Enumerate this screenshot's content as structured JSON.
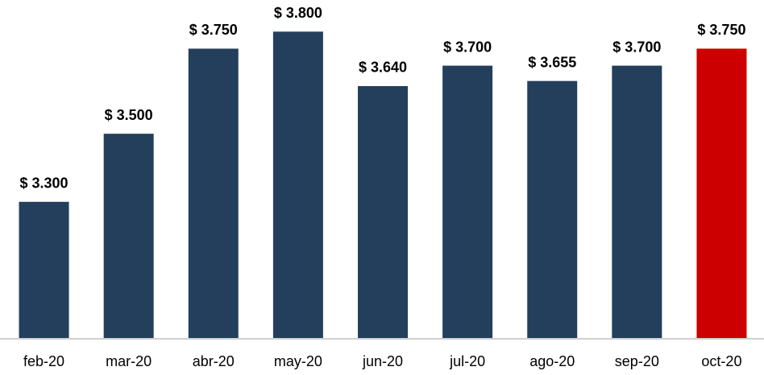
{
  "chart_data": {
    "type": "bar",
    "categories": [
      "feb-20",
      "mar-20",
      "abr-20",
      "may-20",
      "jun-20",
      "jul-20",
      "ago-20",
      "sep-20",
      "oct-20"
    ],
    "values": [
      3300,
      3500,
      3750,
      3800,
      3640,
      3700,
      3655,
      3700,
      3750
    ],
    "value_labels": [
      "$ 3.300",
      "$ 3.500",
      "$ 3.750",
      "$ 3.800",
      "$ 3.640",
      "$ 3.700",
      "$ 3.655",
      "$ 3.700",
      "$ 3.750"
    ],
    "colors": [
      "#243f5c",
      "#243f5c",
      "#243f5c",
      "#243f5c",
      "#243f5c",
      "#243f5c",
      "#243f5c",
      "#243f5c",
      "#cc0000"
    ],
    "ylim": [
      2900,
      3900
    ]
  }
}
